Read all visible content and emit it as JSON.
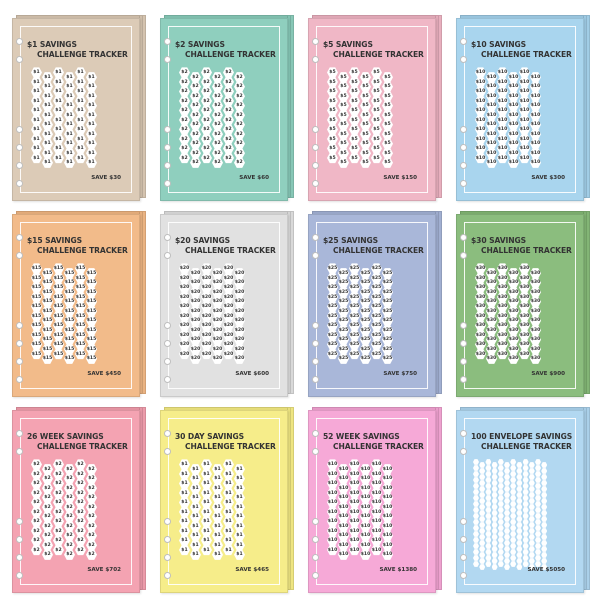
{
  "cards": [
    {
      "title_a": "$1",
      "title_b": "SAVINGS",
      "title_c": "CHALLENGE TRACKER",
      "save": "SAVE $30",
      "color": "#dccbb7",
      "hex_label": "$1"
    },
    {
      "title_a": "$2",
      "title_b": "SAVINGS",
      "title_c": "CHALLENGE TRACKER",
      "save": "SAVE $60",
      "color": "#8fcfbe",
      "hex_label": "$2"
    },
    {
      "title_a": "$5",
      "title_b": "SAVINGS",
      "title_c": "CHALLENGE TRACKER",
      "save": "SAVE $150",
      "color": "#f0b7c6",
      "hex_label": "$5"
    },
    {
      "title_a": "$10",
      "title_b": "SAVINGS",
      "title_c": "CHALLENGE TRACKER",
      "save": "SAVE $300",
      "color": "#a9d5ee",
      "hex_label": "$10"
    },
    {
      "title_a": "$15",
      "title_b": "SAVINGS",
      "title_c": "CHALLENGE TRACKER",
      "save": "SAVE $450",
      "color": "#f2bb8a",
      "hex_label": "$15"
    },
    {
      "title_a": "$20",
      "title_b": "SAVINGS",
      "title_c": "CHALLENGE TRACKER",
      "save": "SAVE $600",
      "color": "#e1e1e1",
      "hex_label": "$20"
    },
    {
      "title_a": "$25",
      "title_b": "SAVINGS",
      "title_c": "CHALLENGE TRACKER",
      "save": "SAVE $750",
      "color": "#a9b7d9",
      "hex_label": "$25"
    },
    {
      "title_a": "$30",
      "title_b": "SAVINGS",
      "title_c": "CHALLENGE TRACKER",
      "save": "SAVE $900",
      "color": "#8bbd7e",
      "hex_label": "$30"
    },
    {
      "title_a": "26",
      "title_b": "WEEK SAVINGS",
      "title_c": "CHALLENGE TRACKER",
      "save": "SAVE $702",
      "color": "#f4a3b2",
      "hex_label": "$2"
    },
    {
      "title_a": "30",
      "title_b": "DAY SAVINGS",
      "title_c": "CHALLENGE TRACKER",
      "save": "SAVE $465",
      "color": "#f6ed8a",
      "hex_label": "$1"
    },
    {
      "title_a": "52",
      "title_b": "WEEK SAVINGS",
      "title_c": "CHALLENGE TRACKER",
      "save": "SAVE $1380",
      "color": "#f6a9d7",
      "hex_label": "$10"
    },
    {
      "title_a": "100",
      "title_b": "ENVELOPE SAVINGS",
      "title_c": "CHALLENGE TRACKER",
      "save": "SAVE $5050",
      "color": "#b2d8f1",
      "hex_label": "1"
    }
  ]
}
